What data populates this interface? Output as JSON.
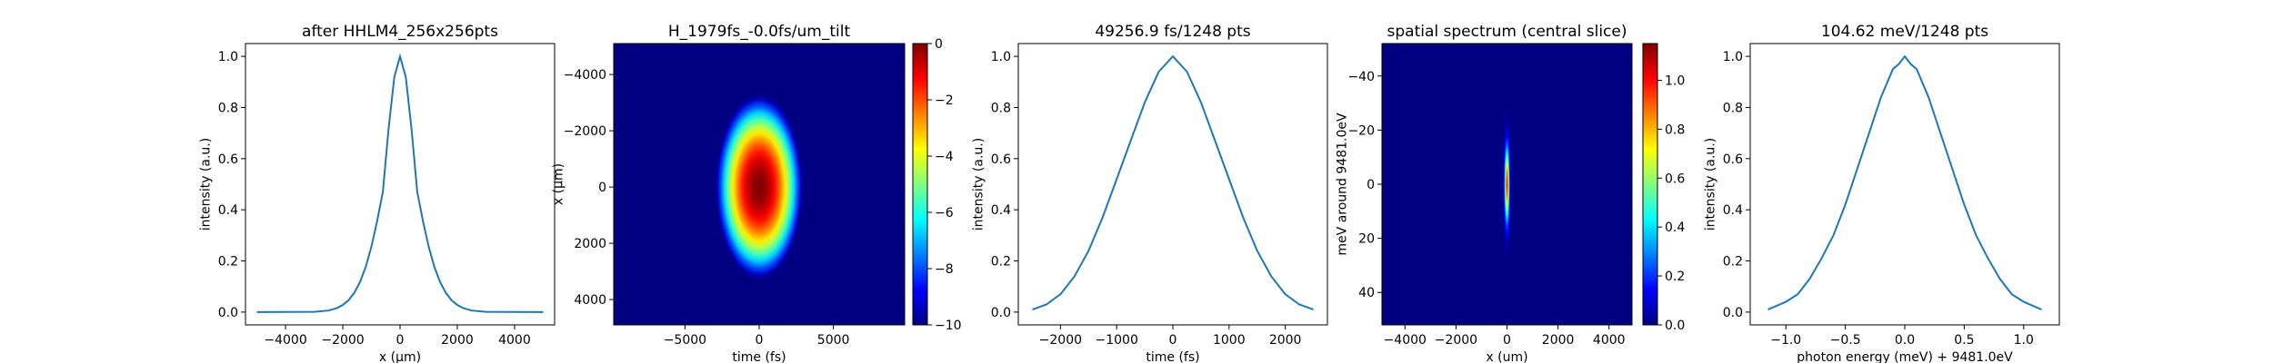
{
  "chart_data": [
    {
      "type": "line",
      "title": "after HHLM4_256x256pts",
      "xlabel": "x (μm)",
      "ylabel": "intensity (a.u.)",
      "xlim": [
        -5400,
        5400
      ],
      "ylim": [
        -0.05,
        1.05
      ],
      "xticks": [
        -4000,
        -2000,
        0,
        2000,
        4000
      ],
      "yticks": [
        0.0,
        0.2,
        0.4,
        0.6,
        0.8,
        1.0
      ],
      "xtick_labels": [
        "−4000",
        "−2000",
        "0",
        "2000",
        "4000"
      ],
      "ytick_labels": [
        "0.0",
        "0.2",
        "0.4",
        "0.6",
        "0.8",
        "1.0"
      ],
      "series": [
        {
          "color": "#1f77b4",
          "x": [
            -5000,
            -3000,
            -2500,
            -2200,
            -2000,
            -1800,
            -1600,
            -1400,
            -1200,
            -1000,
            -800,
            -600,
            -400,
            -200,
            0,
            200,
            400,
            600,
            800,
            1000,
            1200,
            1400,
            1600,
            1800,
            2000,
            2200,
            2500,
            3000,
            5000
          ],
          "y": [
            0.0,
            0.001,
            0.006,
            0.016,
            0.028,
            0.046,
            0.075,
            0.117,
            0.176,
            0.256,
            0.356,
            0.47,
            0.717,
            0.919,
            1.0,
            0.919,
            0.717,
            0.47,
            0.356,
            0.256,
            0.176,
            0.117,
            0.075,
            0.046,
            0.028,
            0.016,
            0.006,
            0.001,
            0.0
          ]
        }
      ]
    },
    {
      "type": "heatmap",
      "title": "H_1979fs_-0.0fs/um_tilt",
      "xlabel": "time (fs)",
      "ylabel": "x (μm)",
      "xlim": [
        -9800,
        9800
      ],
      "ylim": [
        4900,
        -5100
      ],
      "xticks": [
        -5000,
        0,
        5000
      ],
      "yticks": [
        -4000,
        -2000,
        0,
        2000,
        4000
      ],
      "xtick_labels": [
        "−5000",
        "0",
        "5000"
      ],
      "ytick_labels": [
        "−4000",
        "−2000",
        "0",
        "2000",
        "4000"
      ],
      "colormap": "jet",
      "center": [
        0,
        0
      ],
      "sigma_x": 1350,
      "sigma_y": 1500,
      "clim": [
        -10,
        0
      ],
      "colorbar_ticks": [
        0,
        -2,
        -4,
        -6,
        -8,
        -10
      ],
      "colorbar_tick_labels": [
        "0",
        "−2",
        "−4",
        "−6",
        "−8",
        "−10"
      ]
    },
    {
      "type": "line",
      "title": "49256.9 fs/1248 pts",
      "xlabel": "time (fs)",
      "ylabel": "intensity (a.u.)",
      "xlim": [
        -2750,
        2750
      ],
      "ylim": [
        -0.05,
        1.05
      ],
      "xticks": [
        -2000,
        -1000,
        0,
        1000,
        2000
      ],
      "yticks": [
        0.0,
        0.2,
        0.4,
        0.6,
        0.8,
        1.0
      ],
      "xtick_labels": [
        "−2000",
        "−1000",
        "0",
        "1000",
        "2000"
      ],
      "ytick_labels": [
        "0.0",
        "0.2",
        "0.4",
        "0.6",
        "0.8",
        "1.0"
      ],
      "series": [
        {
          "color": "#1f77b4",
          "x": [
            -2500,
            -2250,
            -2000,
            -1750,
            -1500,
            -1250,
            -1000,
            -750,
            -500,
            -250,
            0,
            250,
            500,
            750,
            1000,
            1250,
            1500,
            1750,
            2000,
            2250,
            2500
          ],
          "y": [
            0.01,
            0.03,
            0.07,
            0.14,
            0.24,
            0.37,
            0.52,
            0.67,
            0.82,
            0.94,
            1.0,
            0.94,
            0.82,
            0.67,
            0.52,
            0.37,
            0.24,
            0.14,
            0.07,
            0.03,
            0.01
          ]
        }
      ]
    },
    {
      "type": "heatmap",
      "title": "spatial spectrum (central slice)",
      "xlabel": "x (um)",
      "ylabel": "meV around 9481.0eV",
      "xlim": [
        -4900,
        4900
      ],
      "ylim": [
        52,
        -52
      ],
      "xticks": [
        -4000,
        -2000,
        0,
        2000,
        4000
      ],
      "yticks": [
        40,
        20,
        0,
        -20,
        -40
      ],
      "xtick_labels": [
        "−4000",
        "−2000",
        "0",
        "2000",
        "4000"
      ],
      "ytick_labels": [
        "40",
        "20",
        "0",
        "−20",
        "−40"
      ],
      "colormap": "jet",
      "center": [
        0,
        0
      ],
      "sigma_x": 60,
      "sigma_y": 9,
      "clim": [
        0,
        1.15
      ],
      "colorbar_ticks": [
        1.0,
        0.8,
        0.6,
        0.4,
        0.2,
        0.0
      ],
      "colorbar_tick_labels": [
        "1.0",
        "0.8",
        "0.6",
        "0.4",
        "0.2",
        "0.0"
      ]
    },
    {
      "type": "line",
      "title": "104.62 meV/1248 pts",
      "xlabel": "photon energy (meV) + 9481.0eV",
      "ylabel": "intensity (a.u.)",
      "xlim": [
        -1.3,
        1.3
      ],
      "ylim": [
        -0.05,
        1.05
      ],
      "xticks": [
        -1.0,
        -0.5,
        0.0,
        0.5,
        1.0
      ],
      "yticks": [
        0.0,
        0.2,
        0.4,
        0.6,
        0.8,
        1.0
      ],
      "xtick_labels": [
        "−1.0",
        "−0.5",
        "0.0",
        "0.5",
        "1.0"
      ],
      "ytick_labels": [
        "0.0",
        "0.2",
        "0.4",
        "0.6",
        "0.8",
        "1.0"
      ],
      "series": [
        {
          "color": "#1f77b4",
          "x": [
            -1.15,
            -1.0,
            -0.9,
            -0.8,
            -0.7,
            -0.6,
            -0.5,
            -0.4,
            -0.3,
            -0.2,
            -0.1,
            -0.05,
            0.0,
            0.05,
            0.1,
            0.2,
            0.3,
            0.4,
            0.5,
            0.6,
            0.7,
            0.8,
            0.9,
            1.0,
            1.15
          ],
          "y": [
            0.01,
            0.04,
            0.07,
            0.13,
            0.21,
            0.3,
            0.42,
            0.56,
            0.7,
            0.84,
            0.95,
            0.97,
            1.0,
            0.97,
            0.95,
            0.84,
            0.7,
            0.56,
            0.42,
            0.3,
            0.21,
            0.13,
            0.07,
            0.04,
            0.01
          ]
        }
      ]
    }
  ]
}
